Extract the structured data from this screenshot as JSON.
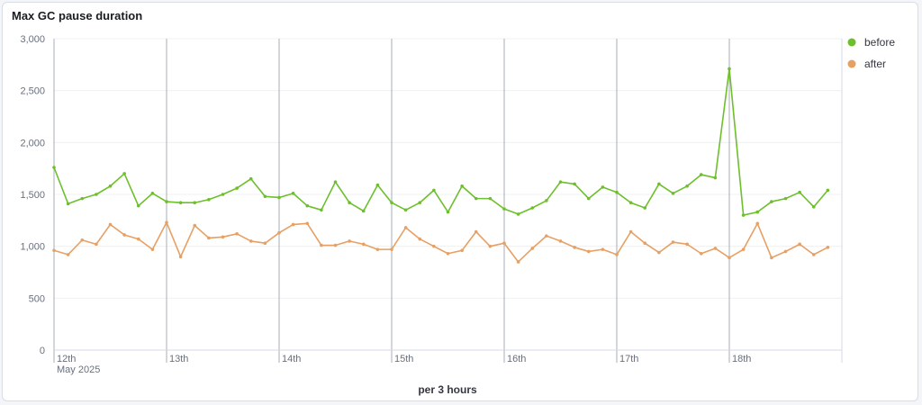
{
  "panel": {
    "title": "Max GC pause duration"
  },
  "chart_data": {
    "type": "line",
    "title": "Max GC pause duration",
    "xlabel": "per 3 hours",
    "ylabel": "",
    "ylim": [
      0,
      3000
    ],
    "yticks": [
      0,
      500,
      1000,
      1500,
      2000,
      2500,
      3000
    ],
    "ytick_labels": [
      "0",
      "500",
      "1,000",
      "1,500",
      "2,000",
      "2,500",
      "3,000"
    ],
    "x_unit": "3-hour bucket index starting 12 May 2025 00:00",
    "x_start_label": "May 2025",
    "day_ticks": [
      {
        "label": "12th",
        "x": 0
      },
      {
        "label": "13th",
        "x": 8
      },
      {
        "label": "14th",
        "x": 16
      },
      {
        "label": "15th",
        "x": 24
      },
      {
        "label": "16th",
        "x": 32
      },
      {
        "label": "17th",
        "x": 40
      },
      {
        "label": "18th",
        "x": 48
      }
    ],
    "legend_position": "right",
    "series": [
      {
        "name": "before",
        "color": "#6dbf2c",
        "values": [
          1760,
          1410,
          1460,
          1500,
          1580,
          1700,
          1390,
          1510,
          1430,
          1420,
          1420,
          1450,
          1500,
          1560,
          1650,
          1480,
          1470,
          1510,
          1390,
          1350,
          1620,
          1420,
          1340,
          1590,
          1420,
          1350,
          1420,
          1540,
          1330,
          1580,
          1460,
          1460,
          1360,
          1310,
          1370,
          1440,
          1620,
          1600,
          1460,
          1570,
          1520,
          1420,
          1370,
          1600,
          1510,
          1580,
          1690,
          1660,
          2710,
          1300,
          1330,
          1430,
          1460,
          1520,
          1380,
          1540
        ]
      },
      {
        "name": "after",
        "color": "#e7a064",
        "values": [
          960,
          920,
          1060,
          1020,
          1210,
          1110,
          1070,
          970,
          1230,
          900,
          1200,
          1080,
          1090,
          1120,
          1050,
          1030,
          1130,
          1210,
          1220,
          1010,
          1010,
          1050,
          1020,
          970,
          970,
          1180,
          1070,
          1000,
          930,
          960,
          1140,
          1000,
          1030,
          850,
          980,
          1100,
          1050,
          990,
          950,
          970,
          920,
          1140,
          1030,
          940,
          1040,
          1020,
          930,
          980,
          890,
          970,
          1220,
          890,
          950,
          1020,
          920,
          990
        ]
      }
    ]
  }
}
